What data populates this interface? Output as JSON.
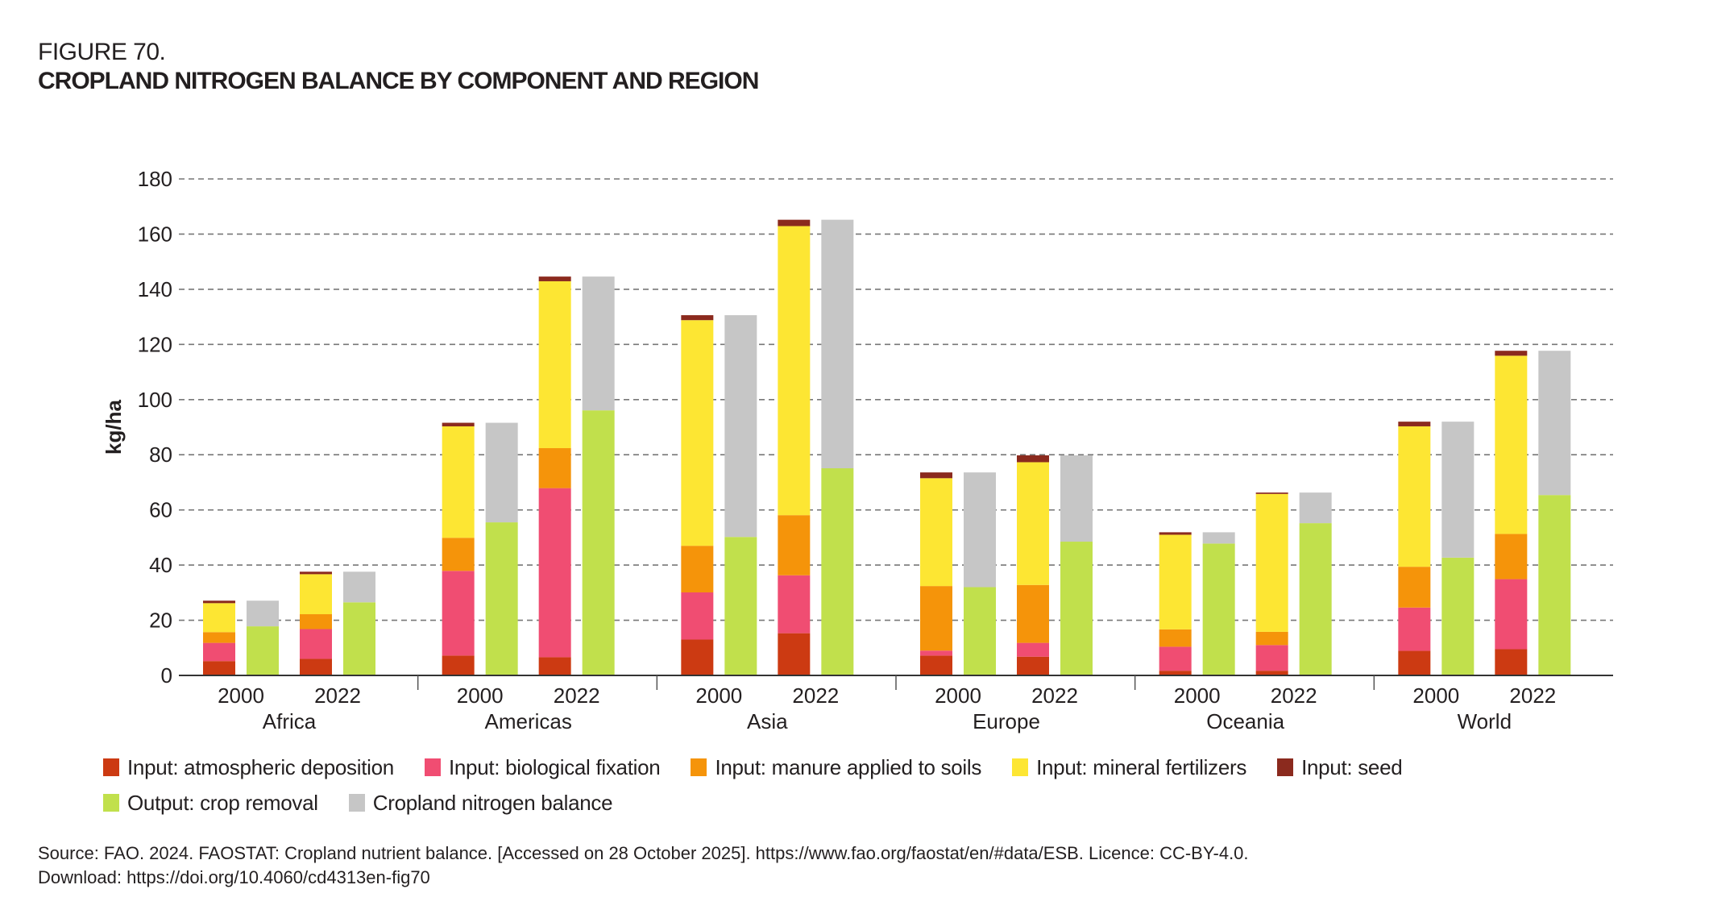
{
  "figure": {
    "number": "FIGURE 70.",
    "title": "CROPLAND NITROGEN BALANCE BY COMPONENT AND REGION"
  },
  "source": {
    "line1": "Source: FAO. 2024. FAOSTAT: Cropland nutrient balance. [Accessed on 28 October 2025]. https://www.fao.org/faostat/en/#data/ESB. Licence: CC-BY-4.0.",
    "line2": "Download: https://doi.org/10.4060/cd4313en-fig70"
  },
  "chart_data": {
    "type": "bar",
    "stacked": true,
    "title": "CROPLAND NITROGEN BALANCE BY COMPONENT AND REGION",
    "xlabel": "",
    "ylabel": "kg/ha",
    "ylim": [
      0,
      180
    ],
    "yticks": [
      0,
      20,
      40,
      60,
      80,
      100,
      120,
      140,
      160,
      180
    ],
    "grid": "horizontal-dashed",
    "legend_position": "bottom",
    "groups": [
      "Africa",
      "Americas",
      "Asia",
      "Europe",
      "Oceania",
      "World"
    ],
    "years": [
      "2000",
      "2022"
    ],
    "input_series": [
      {
        "key": "atm",
        "name": "Input: atmospheric deposition",
        "color": "#cc3a12"
      },
      {
        "key": "bio",
        "name": "Input: biological fixation",
        "color": "#f04d72"
      },
      {
        "key": "manure",
        "name": "Input: manure applied to soils",
        "color": "#f5940a"
      },
      {
        "key": "mineral",
        "name": "Input: mineral fertilizers",
        "color": "#fde633"
      },
      {
        "key": "seed",
        "name": "Input: seed",
        "color": "#8b2a1e"
      }
    ],
    "output_series": [
      {
        "key": "crop",
        "name": "Output: crop removal",
        "color": "#c1e04c"
      },
      {
        "key": "balance",
        "name": "Cropland nitrogen balance",
        "color": "#c6c6c6"
      }
    ],
    "values": [
      {
        "group": "Africa",
        "year": "2000",
        "atm": 5.2,
        "bio": 6.6,
        "manure": 3.9,
        "mineral": 10.5,
        "seed": 0.9,
        "crop": 17.8,
        "balance": 9.3
      },
      {
        "group": "Africa",
        "year": "2022",
        "atm": 6.0,
        "bio": 10.8,
        "manure": 5.4,
        "mineral": 14.5,
        "seed": 0.9,
        "crop": 26.5,
        "balance": 11.1
      },
      {
        "group": "Americas",
        "year": "2000",
        "atm": 7.2,
        "bio": 30.7,
        "manure": 12.0,
        "mineral": 40.4,
        "seed": 1.3,
        "crop": 55.5,
        "balance": 36.1
      },
      {
        "group": "Americas",
        "year": "2022",
        "atm": 6.6,
        "bio": 61.3,
        "manure": 14.5,
        "mineral": 60.5,
        "seed": 1.7,
        "crop": 96.1,
        "balance": 48.5
      },
      {
        "group": "Asia",
        "year": "2000",
        "atm": 13.0,
        "bio": 17.1,
        "manure": 16.9,
        "mineral": 81.8,
        "seed": 1.8,
        "crop": 50.2,
        "balance": 80.4
      },
      {
        "group": "Asia",
        "year": "2022",
        "atm": 15.3,
        "bio": 21.0,
        "manure": 21.8,
        "mineral": 104.8,
        "seed": 2.3,
        "crop": 75.1,
        "balance": 90.1
      },
      {
        "group": "Europe",
        "year": "2000",
        "atm": 7.2,
        "bio": 1.8,
        "manure": 23.4,
        "mineral": 39.1,
        "seed": 2.1,
        "crop": 32.0,
        "balance": 41.6
      },
      {
        "group": "Europe",
        "year": "2022",
        "atm": 6.8,
        "bio": 5.0,
        "manure": 21.0,
        "mineral": 44.5,
        "seed": 2.5,
        "crop": 48.5,
        "balance": 31.3
      },
      {
        "group": "Oceania",
        "year": "2000",
        "atm": 1.7,
        "bio": 8.7,
        "manure": 6.3,
        "mineral": 34.3,
        "seed": 0.9,
        "crop": 47.8,
        "balance": 4.1
      },
      {
        "group": "Oceania",
        "year": "2022",
        "atm": 1.7,
        "bio": 9.3,
        "manure": 4.8,
        "mineral": 50.0,
        "seed": 0.5,
        "crop": 55.2,
        "balance": 11.1
      },
      {
        "group": "World",
        "year": "2000",
        "atm": 8.9,
        "bio": 15.7,
        "manure": 14.8,
        "mineral": 50.9,
        "seed": 1.7,
        "crop": 42.7,
        "balance": 49.3
      },
      {
        "group": "World",
        "year": "2022",
        "atm": 9.5,
        "bio": 25.4,
        "manure": 16.4,
        "mineral": 64.6,
        "seed": 1.8,
        "crop": 65.4,
        "balance": 52.3
      }
    ]
  },
  "legend": {
    "row1": [
      {
        "label": "Input: atmospheric deposition",
        "color": "#cc3a12"
      },
      {
        "label": "Input: biological fixation",
        "color": "#f04d72"
      },
      {
        "label": "Input: manure applied to soils",
        "color": "#f5940a"
      },
      {
        "label": "Input: mineral fertilizers",
        "color": "#fde633"
      },
      {
        "label": "Input: seed",
        "color": "#8b2a1e"
      }
    ],
    "row2": [
      {
        "label": "Output: crop removal",
        "color": "#c1e04c"
      },
      {
        "label": "Cropland nitrogen balance",
        "color": "#c6c6c6"
      }
    ]
  }
}
